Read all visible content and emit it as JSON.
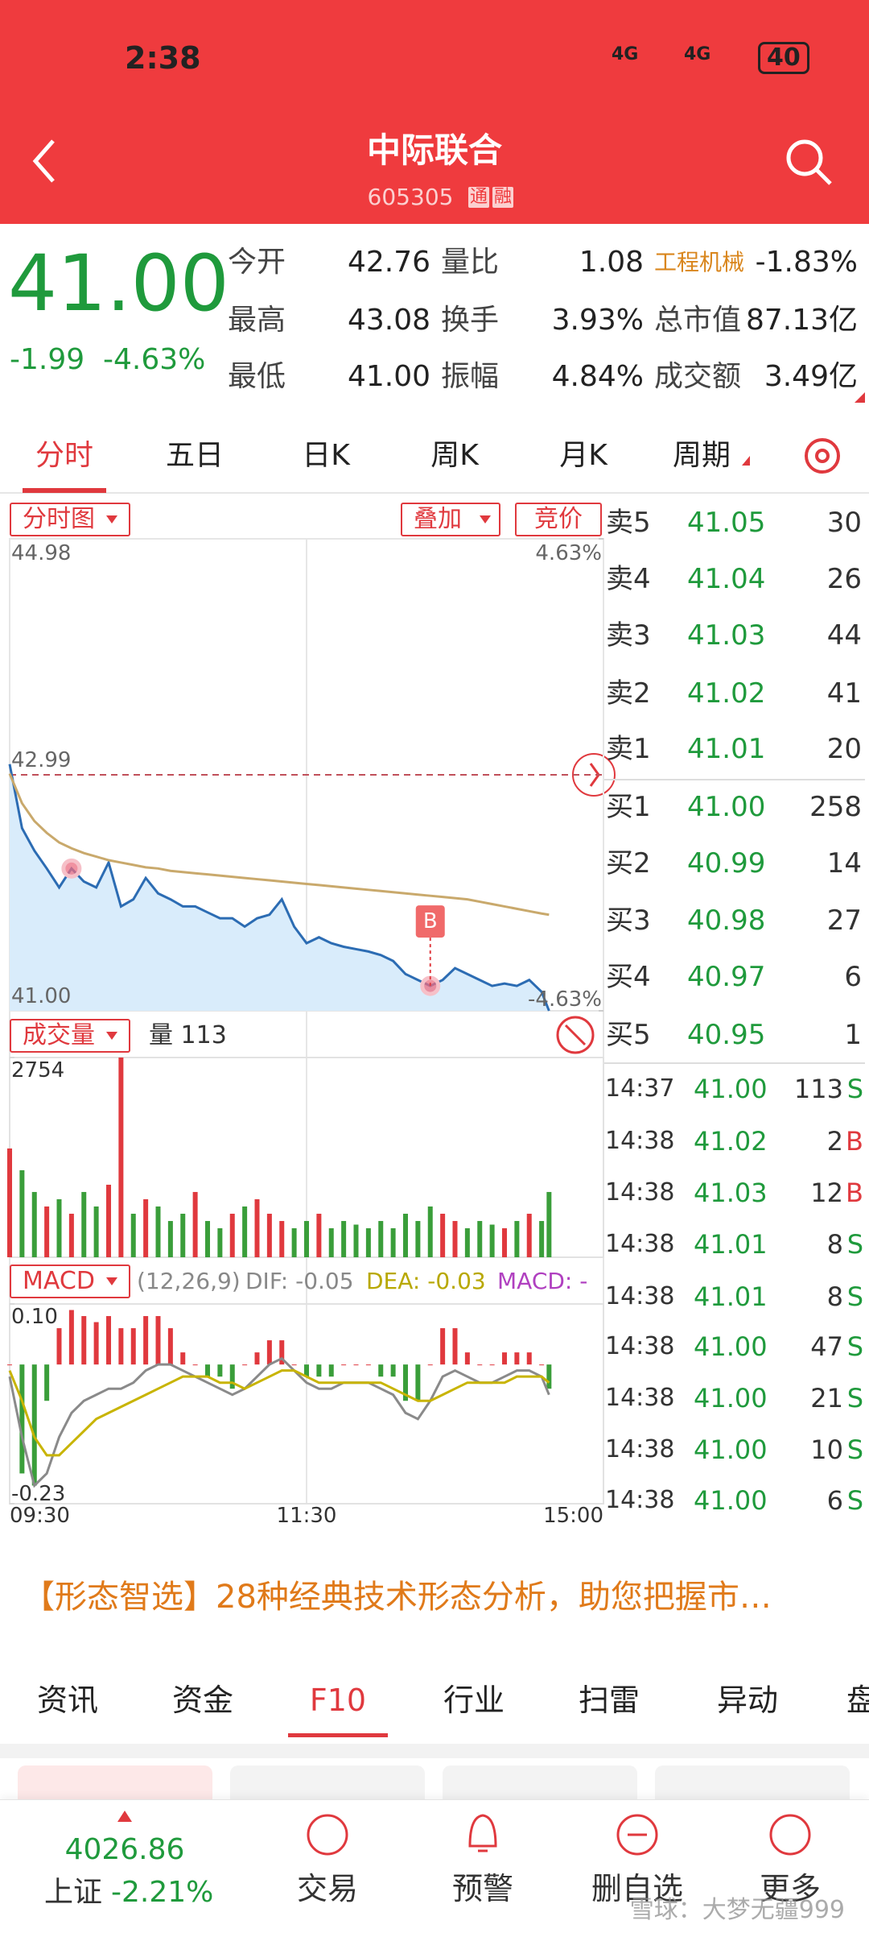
{
  "status": {
    "time": "2:38",
    "battery": "40",
    "network": "4G"
  },
  "header": {
    "title": "中际联合",
    "code": "605305",
    "badges": [
      "通",
      "融"
    ]
  },
  "quote": {
    "price": "41.00",
    "change": "-1.99",
    "change_pct": "-4.63%",
    "stats": [
      [
        {
          "label": "今开",
          "value": "42.76"
        },
        {
          "label": "量比",
          "value": "1.08"
        },
        {
          "label": "工程机械",
          "value": "-1.83%"
        }
      ],
      [
        {
          "label": "最高",
          "value": "43.08"
        },
        {
          "label": "换手",
          "value": "3.93%"
        },
        {
          "label": "总市值",
          "value": "87.13亿"
        }
      ],
      [
        {
          "label": "最低",
          "value": "41.00"
        },
        {
          "label": "振幅",
          "value": "4.84%"
        },
        {
          "label": "成交额",
          "value": "3.49亿"
        }
      ]
    ]
  },
  "tabs": {
    "items": [
      "分时",
      "五日",
      "日K",
      "周K",
      "月K",
      "周期"
    ],
    "active": 0
  },
  "chart_buttons": [
    "分时图",
    "叠加",
    "竞价"
  ],
  "intraday": {
    "type": "line",
    "x": [
      0,
      5,
      10,
      15,
      20,
      25,
      30,
      35,
      40,
      45,
      50,
      55,
      60,
      65,
      70,
      75,
      80,
      85,
      90,
      95,
      100,
      105,
      110,
      115,
      120,
      125,
      130,
      135,
      140,
      145,
      150,
      155,
      160,
      165,
      170,
      175,
      180,
      185,
      190,
      195,
      200,
      205,
      210,
      215,
      218
    ],
    "xlim": [
      0,
      240
    ],
    "xticks": [
      {
        "value": 0,
        "label": "09:30"
      },
      {
        "value": 120,
        "label": "11:30"
      },
      {
        "value": 240,
        "label": "15:00"
      }
    ],
    "ylim": [
      41,
      44.98
    ],
    "yticks": [
      {
        "value": 44.98,
        "label": "44.98"
      },
      {
        "value": 42.99,
        "label": "42.99"
      },
      {
        "value": 41,
        "label": "41.00"
      }
    ],
    "y2lim": [
      -4.63,
      4.63
    ],
    "y2ticks": [
      {
        "value": 4.63,
        "label": "4.63%"
      },
      {
        "value": -4.63,
        "label": "-4.63%"
      }
    ],
    "series": [
      {
        "color": "#2c6cb3",
        "values": [
          43.08,
          42.54,
          42.35,
          42.2,
          42.04,
          42.2,
          42.09,
          42.04,
          42.25,
          41.88,
          41.94,
          42.12,
          41.99,
          41.94,
          41.88,
          41.88,
          41.83,
          41.78,
          41.78,
          41.71,
          41.78,
          41.81,
          41.94,
          41.71,
          41.57,
          41.62,
          41.57,
          41.54,
          41.52,
          41.5,
          41.47,
          41.42,
          41.31,
          41.26,
          41.21,
          41.26,
          41.36,
          41.31,
          41.26,
          41.21,
          41.23,
          41.21,
          41.26,
          41.16,
          41.0
        ]
      },
      {
        "color": "#c9a96c",
        "values": [
          43.0,
          42.75,
          42.6,
          42.5,
          42.42,
          42.37,
          42.33,
          42.3,
          42.27,
          42.25,
          42.23,
          42.21,
          42.2,
          42.18,
          42.17,
          42.16,
          42.15,
          42.14,
          42.13,
          42.12,
          42.11,
          42.1,
          42.09,
          42.08,
          42.07,
          42.06,
          42.05,
          42.04,
          42.03,
          42.02,
          42.01,
          42.0,
          41.99,
          41.98,
          41.97,
          41.96,
          41.95,
          41.94,
          41.92,
          41.9,
          41.88,
          41.86,
          41.84,
          41.82,
          41.81
        ]
      }
    ],
    "markers": [
      {
        "x": 25,
        "value": 42.2
      },
      {
        "x": 170,
        "value": 41.21,
        "label": "B"
      }
    ]
  },
  "volume": {
    "type": "bar",
    "header": [
      "成交量",
      "量 113"
    ],
    "ylim": [
      0,
      2754
    ],
    "yticks": [
      2754
    ],
    "values": [
      1500,
      1200,
      900,
      700,
      800,
      600,
      900,
      700,
      1000,
      2754,
      600,
      800,
      700,
      500,
      600,
      900,
      500,
      400,
      600,
      700,
      800,
      600,
      500,
      400,
      500,
      600,
      400,
      500,
      450,
      400,
      500,
      400,
      600,
      500,
      700,
      600,
      500,
      400,
      500,
      450,
      400,
      500,
      600,
      500,
      900
    ],
    "bar_colors": [
      "#e0393e",
      "#3a9e3a",
      "#3a9e3a",
      "#e0393e",
      "#3a9e3a",
      "#e0393e",
      "#3a9e3a",
      "#3a9e3a",
      "#e0393e",
      "#e0393e",
      "#3a9e3a",
      "#e0393e",
      "#3a9e3a",
      "#3a9e3a",
      "#3a9e3a",
      "#e0393e",
      "#3a9e3a",
      "#3a9e3a",
      "#e0393e",
      "#3a9e3a",
      "#e0393e",
      "#e0393e",
      "#e0393e",
      "#3a9e3a",
      "#3a9e3a",
      "#e0393e",
      "#3a9e3a",
      "#3a9e3a",
      "#3a9e3a",
      "#3a9e3a",
      "#3a9e3a",
      "#3a9e3a",
      "#3a9e3a",
      "#3a9e3a",
      "#3a9e3a",
      "#e0393e",
      "#e0393e",
      "#3a9e3a",
      "#3a9e3a",
      "#3a9e3a",
      "#e0393e",
      "#3a9e3a",
      "#e0393e",
      "#3a9e3a",
      "#3a9e3a"
    ]
  },
  "macd": {
    "type": "macd",
    "header": [
      "MACD",
      "(12,26,9)",
      "DIF: -0.05",
      "DEA: -0.03",
      "MACD: -"
    ],
    "ylim": [
      -0.23,
      0.1
    ],
    "yticks": [
      {
        "value": 0.1,
        "label": "0.10"
      },
      -0.23
    ],
    "up_color": "#e0393e",
    "down_color": "#3a9e3a",
    "dif_color": "#8a8a8a",
    "dea_color": "#c8b400",
    "histogram": [
      0,
      -0.18,
      -0.2,
      -0.06,
      0.06,
      0.09,
      0.08,
      0.07,
      0.08,
      0.06,
      0.06,
      0.08,
      0.08,
      0.06,
      0.02,
      0,
      -0.02,
      -0.02,
      -0.04,
      0,
      0.02,
      0.04,
      0.04,
      0,
      -0.02,
      -0.02,
      -0.02,
      0,
      0,
      0,
      -0.02,
      -0.02,
      -0.06,
      -0.06,
      0,
      0.06,
      0.06,
      0.02,
      0,
      0,
      0.02,
      0.02,
      0.02,
      0,
      -0.04
    ],
    "dif": [
      -0.02,
      -0.12,
      -0.2,
      -0.18,
      -0.12,
      -0.08,
      -0.06,
      -0.05,
      -0.04,
      -0.04,
      -0.03,
      -0.01,
      0,
      0,
      -0.01,
      -0.02,
      -0.03,
      -0.04,
      -0.05,
      -0.04,
      -0.02,
      0,
      0.01,
      -0.01,
      -0.03,
      -0.04,
      -0.04,
      -0.03,
      -0.03,
      -0.03,
      -0.04,
      -0.05,
      -0.08,
      -0.09,
      -0.06,
      -0.02,
      -0.01,
      -0.02,
      -0.03,
      -0.03,
      -0.02,
      -0.01,
      -0.01,
      -0.02,
      -0.05
    ],
    "dea": [
      -0.01,
      -0.06,
      -0.12,
      -0.15,
      -0.15,
      -0.13,
      -0.11,
      -0.09,
      -0.08,
      -0.07,
      -0.06,
      -0.05,
      -0.04,
      -0.03,
      -0.02,
      -0.02,
      -0.02,
      -0.03,
      -0.03,
      -0.04,
      -0.03,
      -0.02,
      -0.01,
      -0.01,
      -0.02,
      -0.03,
      -0.03,
      -0.03,
      -0.03,
      -0.03,
      -0.03,
      -0.04,
      -0.05,
      -0.06,
      -0.06,
      -0.05,
      -0.04,
      -0.03,
      -0.03,
      -0.03,
      -0.03,
      -0.02,
      -0.02,
      -0.02,
      -0.03
    ]
  },
  "order_book": {
    "asks": [
      {
        "label": "卖5",
        "price": "41.05",
        "volume": "30"
      },
      {
        "label": "卖4",
        "price": "41.04",
        "volume": "26"
      },
      {
        "label": "卖3",
        "price": "41.03",
        "volume": "44"
      },
      {
        "label": "卖2",
        "price": "41.02",
        "volume": "41"
      },
      {
        "label": "卖1",
        "price": "41.01",
        "volume": "20"
      }
    ],
    "bids": [
      {
        "label": "买1",
        "price": "41.00",
        "volume": "258"
      },
      {
        "label": "买2",
        "price": "40.99",
        "volume": "14"
      },
      {
        "label": "买3",
        "price": "40.98",
        "volume": "27"
      },
      {
        "label": "买4",
        "price": "40.97",
        "volume": "6"
      },
      {
        "label": "买5",
        "price": "40.95",
        "volume": "1"
      }
    ]
  },
  "trades": [
    {
      "time": "14:37",
      "price": "41.00",
      "volume": "113",
      "side": "S"
    },
    {
      "time": "14:38",
      "price": "41.02",
      "volume": "2",
      "side": "B"
    },
    {
      "time": "14:38",
      "price": "41.03",
      "volume": "12",
      "side": "B"
    },
    {
      "time": "14:38",
      "price": "41.01",
      "volume": "8",
      "side": "S"
    },
    {
      "time": "14:38",
      "price": "41.01",
      "volume": "8",
      "side": "S"
    },
    {
      "time": "14:38",
      "price": "41.00",
      "volume": "47",
      "side": "S"
    },
    {
      "time": "14:38",
      "price": "41.00",
      "volume": "21",
      "side": "S"
    },
    {
      "time": "14:38",
      "price": "41.00",
      "volume": "10",
      "side": "S"
    },
    {
      "time": "14:38",
      "price": "41.00",
      "volume": "6",
      "side": "S"
    }
  ],
  "banner": "【形态智选】28种经典技术形态分析，助您把握市…",
  "bottom_tabs": {
    "items": [
      "资讯",
      "资金",
      "F10",
      "行业",
      "扫雷",
      "异动",
      "盘"
    ],
    "active": 2
  },
  "footer": {
    "index_value": "4026.86",
    "index_name": "上证",
    "index_change": "-2.21%",
    "nav": [
      "交易",
      "预警",
      "删自选",
      "更多"
    ],
    "watermark": "雪球：大梦无疆999"
  }
}
